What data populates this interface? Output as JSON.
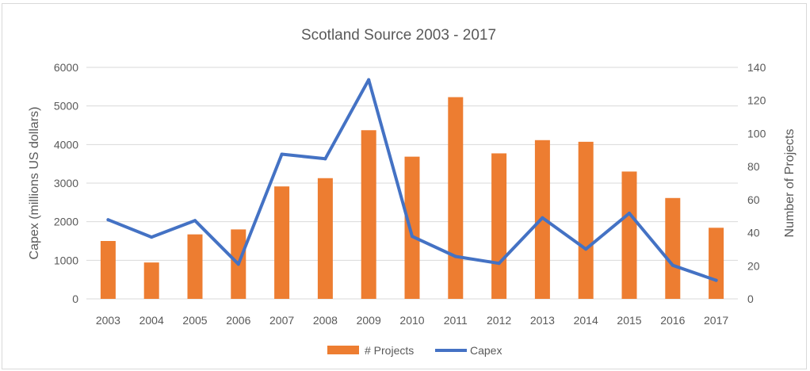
{
  "chart_data": {
    "type": "bar+line",
    "title": "Scotland Source 2003 - 2017",
    "categories": [
      "2003",
      "2004",
      "2005",
      "2006",
      "2007",
      "2008",
      "2009",
      "2010",
      "2011",
      "2012",
      "2013",
      "2014",
      "2015",
      "2016",
      "2017"
    ],
    "series": [
      {
        "name": "# Projects",
        "type": "bar",
        "axis": "right",
        "color": "#ed7d31",
        "values": [
          35,
          22,
          39,
          42,
          68,
          73,
          102,
          86,
          122,
          88,
          96,
          95,
          77,
          61,
          43
        ]
      },
      {
        "name": "Capex",
        "type": "line",
        "axis": "left",
        "color": "#4472c4",
        "values": [
          2050,
          1600,
          2030,
          900,
          3750,
          3630,
          5680,
          1620,
          1100,
          920,
          2100,
          1290,
          2220,
          870,
          480
        ]
      }
    ],
    "y_left": {
      "label": "Capex (millions US dollars)",
      "min": 0,
      "max": 6000,
      "ticks": [
        0,
        1000,
        2000,
        3000,
        4000,
        5000,
        6000
      ]
    },
    "y_right": {
      "label": "Number of  Projects",
      "min": 0,
      "max": 140,
      "ticks": [
        0,
        20,
        40,
        60,
        80,
        100,
        120,
        140
      ]
    },
    "grid": true,
    "legend_position": "bottom"
  }
}
